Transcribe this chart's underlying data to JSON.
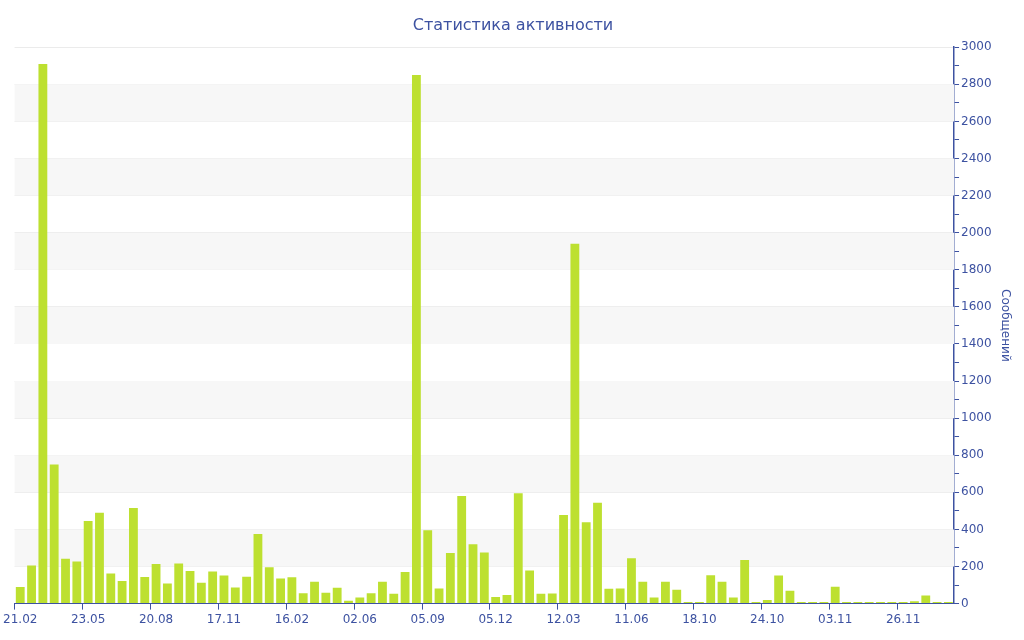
{
  "chart_data": {
    "type": "bar",
    "title": "Статистика активности",
    "ylabel": "Сообщений",
    "categories": [
      "21.02",
      null,
      null,
      null,
      null,
      null,
      "23.05",
      null,
      null,
      null,
      null,
      null,
      "20.08",
      null,
      null,
      null,
      null,
      null,
      "17.11",
      null,
      null,
      null,
      null,
      null,
      "16.02",
      null,
      null,
      null,
      null,
      null,
      "02.06",
      null,
      null,
      null,
      null,
      null,
      "05.09",
      null,
      null,
      null,
      null,
      null,
      "05.12",
      null,
      null,
      null,
      null,
      null,
      "12.03",
      null,
      null,
      null,
      null,
      null,
      "11.06",
      null,
      null,
      null,
      null,
      null,
      "18.10",
      null,
      null,
      null,
      null,
      null,
      "24.10",
      null,
      null,
      null,
      null,
      null,
      "03.11",
      null,
      null,
      null,
      null,
      null,
      "26.11",
      null,
      null,
      null,
      null
    ],
    "values": [
      89,
      205,
      2910,
      750,
      242,
      227,
      445,
      490,
      162,
      122,
      515,
      144,
      213,
      109,
      216,
      176,
      113,
      173,
      151,
      87,
      145,
      375,
      196,
      135,
      142,
      56,
      118,
      58,
      85,
      15,
      33,
      56,
      118,
      53,
      171,
      2850,
      396,
      82,
      273,
      580,
      320,
      275,
      36,
      47,
      595,
      178,
      53,
      55,
      478,
      1940,
      438,
      544,
      80,
      82,
      244,
      118,
      33,
      118,
      75,
      9,
      9,
      153,
      118,
      33,
      235,
      9,
      20,
      151,
      69,
      8,
      8,
      8,
      91,
      9,
      8,
      9,
      9,
      8,
      9,
      13,
      44,
      9,
      9
    ],
    "color": "#bde030",
    "ylim": [
      0,
      3000
    ],
    "yticks": [
      0,
      {
        "value": 100,
        "label": null
      },
      200,
      {
        "value": 300,
        "label": null
      },
      400,
      {
        "value": 500,
        "label": null
      },
      600,
      {
        "value": 700,
        "label": null
      },
      800,
      {
        "value": 900,
        "label": null
      },
      1000,
      {
        "value": 1100,
        "label": null
      },
      1200,
      {
        "value": 1300,
        "label": null
      },
      1400,
      {
        "value": 1500,
        "label": null
      },
      1600,
      {
        "value": 1700,
        "label": null
      },
      1800,
      {
        "value": 1900,
        "label": null
      },
      2000,
      {
        "value": 2100,
        "label": null
      },
      2200,
      {
        "value": 2300,
        "label": null
      },
      2400,
      {
        "value": 2500,
        "label": null
      },
      2600,
      {
        "value": 2700,
        "label": null
      },
      2800,
      {
        "value": 2900,
        "label": null
      },
      3000
    ],
    "grid": "y"
  }
}
